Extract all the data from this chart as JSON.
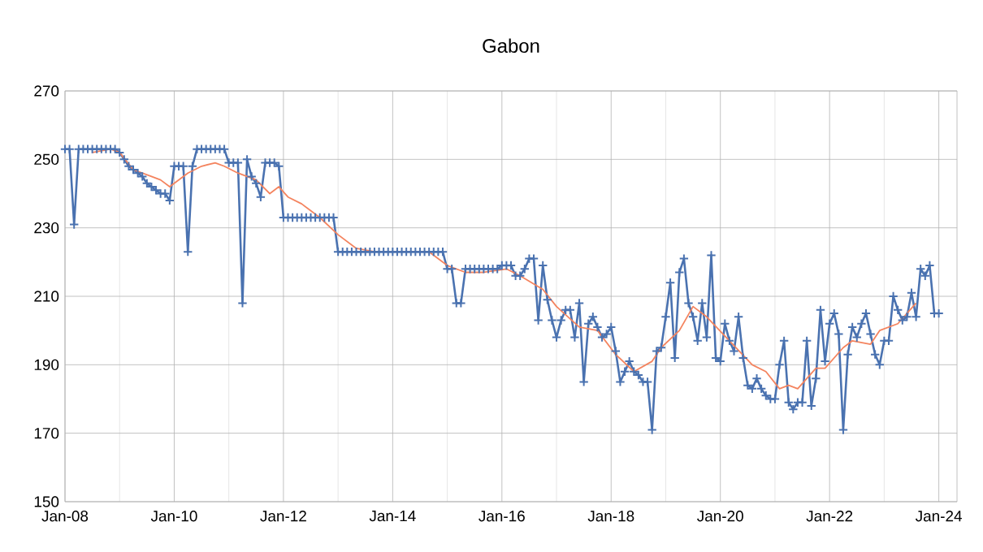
{
  "chart_data": {
    "type": "line",
    "title": "Gabon",
    "marker": "cross",
    "grid": true,
    "xlim": [
      "2008-01",
      "2024-05"
    ],
    "ylim": [
      150,
      270
    ],
    "xticks": [
      {
        "value": "2008-01",
        "label": "Jan-08"
      },
      {
        "value": "2010-01",
        "label": "Jan-10"
      },
      {
        "value": "2012-01",
        "label": "Jan-12"
      },
      {
        "value": "2014-01",
        "label": "Jan-14"
      },
      {
        "value": "2016-01",
        "label": "Jan-16"
      },
      {
        "value": "2018-01",
        "label": "Jan-18"
      },
      {
        "value": "2020-01",
        "label": "Jan-20"
      },
      {
        "value": "2022-01",
        "label": "Jan-22"
      },
      {
        "value": "2024-01",
        "label": "Jan-24"
      }
    ],
    "yticks": [
      150,
      170,
      190,
      210,
      230,
      250,
      270
    ],
    "x": [
      "2008-01",
      "2008-02",
      "2008-03",
      "2008-04",
      "2008-05",
      "2008-06",
      "2008-07",
      "2008-08",
      "2008-09",
      "2008-10",
      "2008-11",
      "2008-12",
      "2009-01",
      "2009-02",
      "2009-03",
      "2009-04",
      "2009-05",
      "2009-06",
      "2009-07",
      "2009-08",
      "2009-09",
      "2009-10",
      "2009-11",
      "2009-12",
      "2010-01",
      "2010-02",
      "2010-03",
      "2010-04",
      "2010-05",
      "2010-06",
      "2010-07",
      "2010-08",
      "2010-09",
      "2010-10",
      "2010-11",
      "2010-12",
      "2011-01",
      "2011-02",
      "2011-03",
      "2011-04",
      "2011-05",
      "2011-06",
      "2011-07",
      "2011-08",
      "2011-09",
      "2011-10",
      "2011-11",
      "2011-12",
      "2012-01",
      "2012-02",
      "2012-03",
      "2012-04",
      "2012-05",
      "2012-06",
      "2012-07",
      "2012-08",
      "2012-09",
      "2012-10",
      "2012-11",
      "2012-12",
      "2013-01",
      "2013-02",
      "2013-03",
      "2013-04",
      "2013-05",
      "2013-06",
      "2013-07",
      "2013-08",
      "2013-09",
      "2013-10",
      "2013-11",
      "2013-12",
      "2014-01",
      "2014-02",
      "2014-03",
      "2014-04",
      "2014-05",
      "2014-06",
      "2014-07",
      "2014-08",
      "2014-09",
      "2014-10",
      "2014-11",
      "2014-12",
      "2015-01",
      "2015-02",
      "2015-03",
      "2015-04",
      "2015-05",
      "2015-06",
      "2015-07",
      "2015-08",
      "2015-09",
      "2015-10",
      "2015-11",
      "2015-12",
      "2016-01",
      "2016-02",
      "2016-03",
      "2016-04",
      "2016-05",
      "2016-06",
      "2016-07",
      "2016-08",
      "2016-09",
      "2016-10",
      "2016-11",
      "2016-12",
      "2017-01",
      "2017-02",
      "2017-03",
      "2017-04",
      "2017-05",
      "2017-06",
      "2017-07",
      "2017-08",
      "2017-09",
      "2017-10",
      "2017-11",
      "2017-12",
      "2018-01",
      "2018-02",
      "2018-03",
      "2018-04",
      "2018-05",
      "2018-06",
      "2018-07",
      "2018-08",
      "2018-09",
      "2018-10",
      "2018-11",
      "2018-12",
      "2019-01",
      "2019-02",
      "2019-03",
      "2019-04",
      "2019-05",
      "2019-06",
      "2019-07",
      "2019-08",
      "2019-09",
      "2019-10",
      "2019-11",
      "2019-12",
      "2020-01",
      "2020-02",
      "2020-03",
      "2020-04",
      "2020-05",
      "2020-06",
      "2020-07",
      "2020-08",
      "2020-09",
      "2020-10",
      "2020-11",
      "2020-12",
      "2021-01",
      "2021-02",
      "2021-03",
      "2021-04",
      "2021-05",
      "2021-06",
      "2021-07",
      "2021-08",
      "2021-09",
      "2021-10",
      "2021-11",
      "2021-12",
      "2022-01",
      "2022-02",
      "2022-03",
      "2022-04",
      "2022-05",
      "2022-06",
      "2022-07",
      "2022-08",
      "2022-09",
      "2022-10",
      "2022-11",
      "2022-12",
      "2023-01",
      "2023-02",
      "2023-03",
      "2023-04",
      "2023-05",
      "2023-06",
      "2023-07",
      "2023-08",
      "2023-09",
      "2023-10",
      "2023-11",
      "2023-12",
      "2024-01"
    ],
    "series": [
      {
        "color": "#4a72b0",
        "values": [
          253,
          253,
          231,
          253,
          253,
          253,
          253,
          253,
          253,
          253,
          253,
          253,
          252,
          250,
          248,
          247,
          246,
          245,
          243,
          242,
          241,
          240,
          240,
          238,
          248,
          248,
          248,
          223,
          248,
          253,
          253,
          253,
          253,
          253,
          253,
          253,
          249,
          249,
          249,
          208,
          250,
          245,
          243,
          239,
          249,
          249,
          249,
          248,
          233,
          233,
          233,
          233,
          233,
          233,
          233,
          233,
          233,
          233,
          233,
          233,
          223,
          223,
          223,
          223,
          223,
          223,
          223,
          223,
          223,
          223,
          223,
          223,
          223,
          223,
          223,
          223,
          223,
          223,
          223,
          223,
          223,
          223,
          223,
          223,
          218,
          218,
          208,
          208,
          218,
          218,
          218,
          218,
          218,
          218,
          218,
          218,
          219,
          219,
          219,
          216,
          216,
          218,
          221,
          221,
          203,
          219,
          209,
          203,
          198,
          203,
          206,
          206,
          198,
          208,
          185,
          202,
          204,
          201,
          198,
          199,
          201,
          194,
          185,
          188,
          191,
          188,
          187,
          185,
          185,
          171,
          194,
          195,
          204,
          214,
          192,
          217,
          221,
          208,
          204,
          197,
          208,
          198,
          222,
          192,
          191,
          202,
          197,
          194,
          204,
          192,
          184,
          183,
          186,
          183,
          181,
          180,
          180,
          190,
          197,
          179,
          177,
          179,
          179,
          197,
          178,
          186,
          206,
          191,
          202,
          205,
          199,
          171,
          193,
          201,
          198,
          202,
          205,
          199,
          193,
          190,
          197,
          197,
          210,
          206,
          203,
          204,
          211,
          204,
          218,
          216,
          219,
          205,
          205
        ]
      },
      {
        "color": "#f4845f",
        "type": "line",
        "marker": "none",
        "x": [
          "2008-07",
          "2008-11",
          "2009-01",
          "2009-04",
          "2009-08",
          "2009-10",
          "2009-12",
          "2010-04",
          "2010-07",
          "2010-10",
          "2010-12",
          "2011-03",
          "2011-07",
          "2011-10",
          "2011-12",
          "2012-02",
          "2012-05",
          "2012-09",
          "2013-01",
          "2013-05",
          "2013-09",
          "2014-09",
          "2015-01",
          "2015-05",
          "2015-09",
          "2016-02",
          "2016-05",
          "2016-10",
          "2017-01",
          "2017-06",
          "2017-10",
          "2018-02",
          "2018-06",
          "2018-10",
          "2018-12",
          "2019-04",
          "2019-07",
          "2019-10",
          "2020-03",
          "2020-08",
          "2020-11",
          "2021-02",
          "2021-04",
          "2021-06",
          "2021-10",
          "2021-12",
          "2022-04",
          "2022-06",
          "2022-10",
          "2022-12",
          "2023-04",
          "2023-08"
        ],
        "values": [
          252,
          253,
          252,
          247,
          245,
          244,
          242,
          246,
          248,
          249,
          248,
          246,
          244,
          240,
          242,
          239,
          237,
          233,
          228,
          224,
          223,
          223,
          219,
          217,
          217,
          218,
          216,
          212,
          207,
          201,
          200,
          193,
          188,
          191,
          195,
          200,
          207,
          204,
          197,
          190,
          188,
          183,
          184,
          183,
          189,
          189,
          195,
          197,
          196,
          200,
          202,
          208
        ]
      }
    ]
  }
}
